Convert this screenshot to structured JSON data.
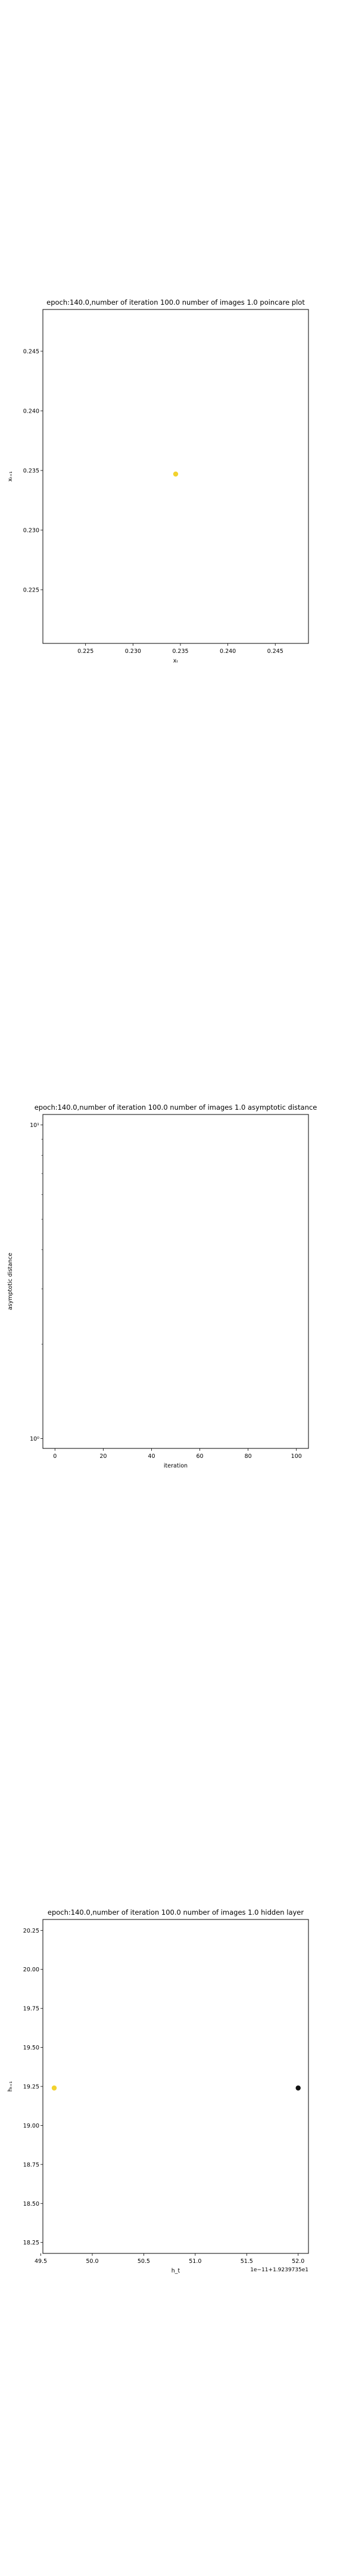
{
  "chart_data": [
    {
      "type": "scatter",
      "title": "epoch:140.0,number of iteration 100.0 number of images 1.0 poincare plot",
      "xlabel": "xₜ",
      "ylabel": "xₜ₊₁",
      "xlim": [
        0.2205,
        0.2485
      ],
      "ylim": [
        0.2205,
        0.2485
      ],
      "xticks": [
        0.225,
        0.23,
        0.235,
        0.24,
        0.245
      ],
      "xtick_labels": [
        "0.225",
        "0.230",
        "0.235",
        "0.240",
        "0.245"
      ],
      "yticks": [
        0.225,
        0.23,
        0.235,
        0.24,
        0.245
      ],
      "ytick_labels": [
        "0.225",
        "0.230",
        "0.235",
        "0.240",
        "0.245"
      ],
      "series": [
        {
          "points": [
            {
              "x": 0.2345,
              "y": 0.2347
            }
          ],
          "color": "#f2d22e"
        }
      ],
      "grid": false
    },
    {
      "type": "line",
      "title": "epoch:140.0,number of iteration 100.0  number of images 1.0 asymptotic distance",
      "xlabel": "iteration",
      "ylabel": "asymptotic distance",
      "xlim": [
        -5,
        105
      ],
      "yscale": "log",
      "xticks": [
        0,
        20,
        40,
        60,
        80,
        100
      ],
      "xtick_labels": [
        "0",
        "20",
        "40",
        "60",
        "80",
        "100"
      ],
      "yticks": [
        1,
        10
      ],
      "ytick_labels": [
        "10⁰",
        "10¹"
      ],
      "series": [],
      "grid": false
    },
    {
      "type": "scatter",
      "title": "epoch:140.0,number of iteration 100.0  number of images 1.0 hidden layer",
      "xlabel": "h_t",
      "ylabel": "hₜ₊₁",
      "offset_text": "1e−11+1.9239735e1",
      "xlim": [
        49.52,
        52.1
      ],
      "ylim": [
        18.18,
        20.32
      ],
      "xticks": [
        49.5,
        50.0,
        50.5,
        51.0,
        51.5,
        52.0
      ],
      "xtick_labels": [
        "49.5",
        "50.0",
        "50.5",
        "51.0",
        "51.5",
        "52.0"
      ],
      "yticks": [
        18.25,
        18.5,
        18.75,
        19.0,
        19.25,
        19.5,
        19.75,
        20.0,
        20.25
      ],
      "ytick_labels": [
        "18.25",
        "18.50",
        "18.75",
        "19.00",
        "19.25",
        "19.50",
        "19.75",
        "20.00",
        "20.25"
      ],
      "series": [
        {
          "points": [
            {
              "x": 49.63,
              "y": 19.24
            }
          ],
          "color": "#f2d22e"
        },
        {
          "points": [
            {
              "x": 52.0,
              "y": 19.24
            }
          ],
          "color": "#111111"
        }
      ],
      "grid": false
    }
  ]
}
